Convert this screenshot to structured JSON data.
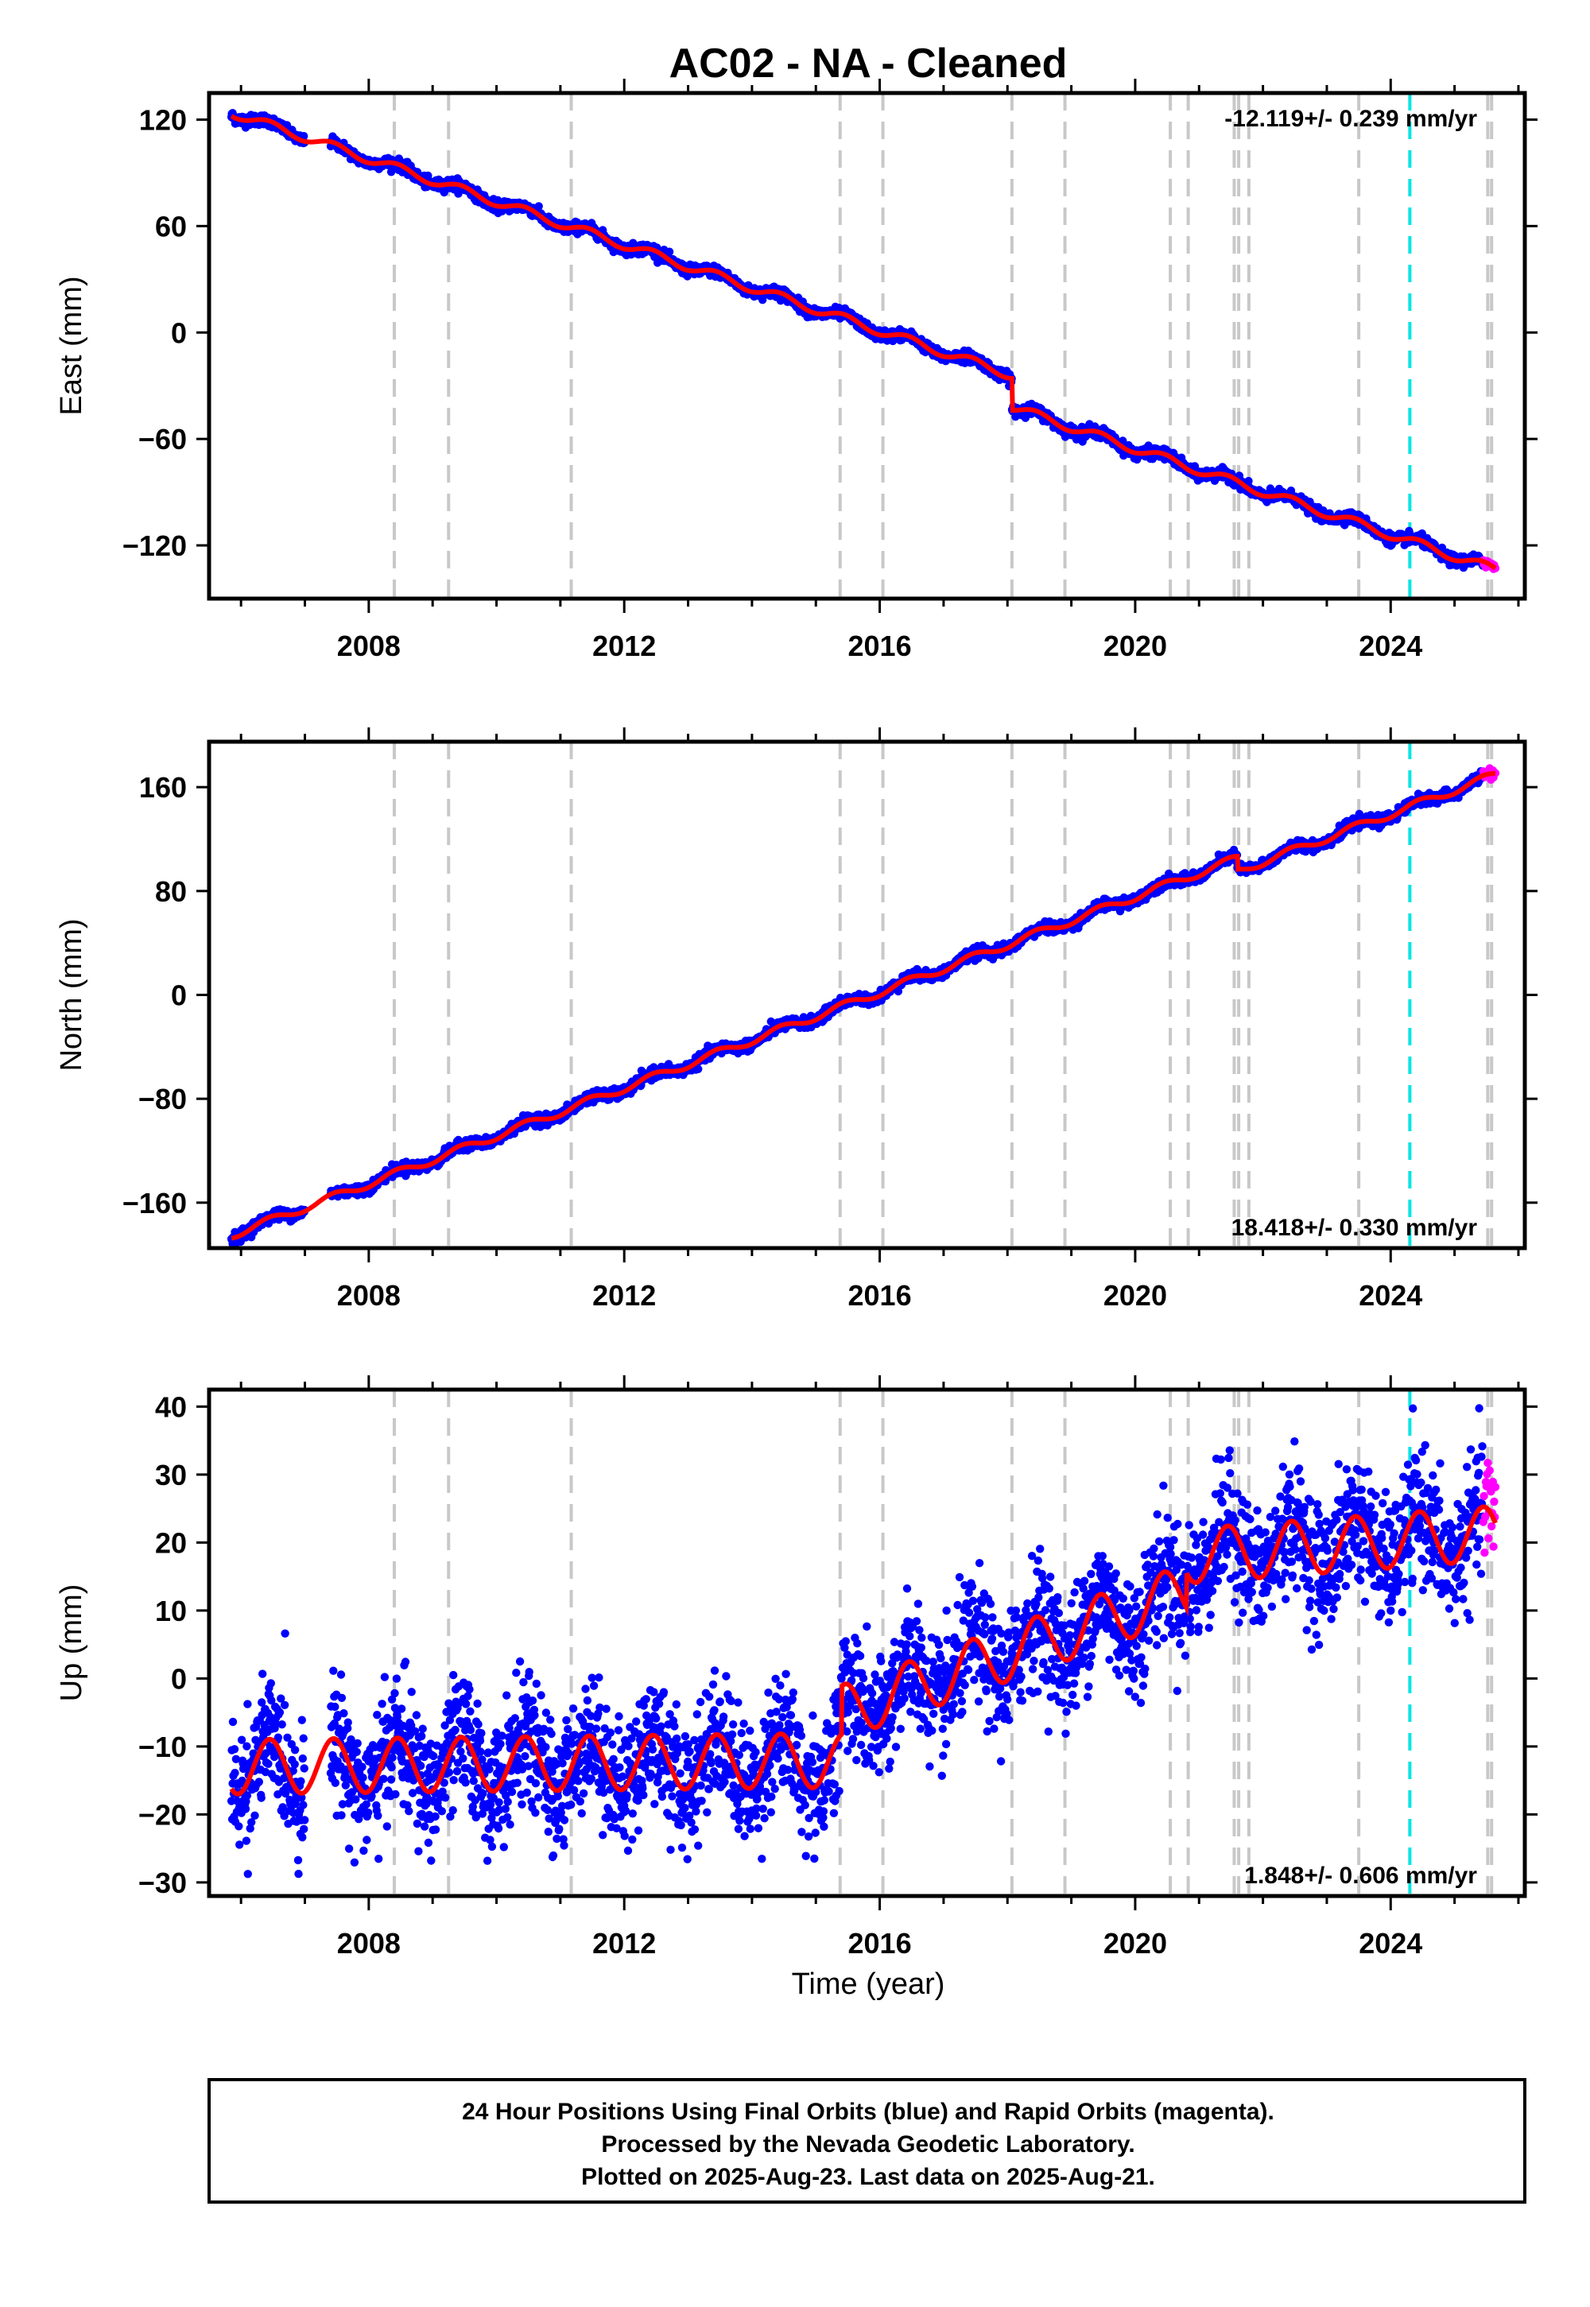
{
  "chart_data": [
    {
      "type": "scatter",
      "title": "AC02  - NA - Cleaned",
      "ylabel": "East (mm)",
      "xlabel": "",
      "xlim": [
        2005.5,
        2026.1
      ],
      "ylim": [
        -150,
        135
      ],
      "x_ticks": [
        2008,
        2012,
        2016,
        2020,
        2024
      ],
      "x_tick_labels": [
        "2008",
        "2012",
        "2016",
        "2020",
        "2024"
      ],
      "y_ticks": [
        -120,
        -60,
        0,
        60,
        120
      ],
      "y_tick_labels": [
        "−120",
        "−60",
        "0",
        "60",
        "120"
      ],
      "rate_label": "-12.119+/- 0.239 mm/yr",
      "rate_position": "top-right",
      "model": {
        "x0": 2005.85,
        "y0": 124,
        "rate_mm_per_yr": -12.119,
        "seasonal_amp": 2.5,
        "offsets": [
          {
            "t": 2018.07,
            "dy": -18
          }
        ]
      },
      "gap": [
        2007.0,
        2007.4
      ],
      "series": [
        {
          "name": "Final Orbits (blue)",
          "color": "#0000ff",
          "x_range": [
            2005.85,
            2025.45
          ],
          "scatter_sd": 1.5
        },
        {
          "name": "Rapid Orbits (magenta)",
          "color": "#ff00ff",
          "x_range": [
            2025.45,
            2025.64
          ],
          "scatter_sd": 1.5
        },
        {
          "name": "model",
          "color": "#ff0000",
          "type": "line"
        }
      ]
    },
    {
      "type": "scatter",
      "ylabel": "North (mm)",
      "xlabel": "",
      "xlim": [
        2005.5,
        2026.1
      ],
      "ylim": [
        -195,
        195
      ],
      "x_ticks": [
        2008,
        2012,
        2016,
        2020,
        2024
      ],
      "x_tick_labels": [
        "2008",
        "2012",
        "2016",
        "2020",
        "2024"
      ],
      "y_ticks": [
        -160,
        -80,
        0,
        80,
        160
      ],
      "y_tick_labels": [
        "−160",
        "−80",
        "0",
        "80",
        "160"
      ],
      "rate_label": "18.418+/- 0.330 mm/yr",
      "rate_position": "bottom-right",
      "model": {
        "x0": 2005.85,
        "y0": -185,
        "rate_mm_per_yr": 18.418,
        "seasonal_amp": 3,
        "offsets": [
          {
            "t": 2021.6,
            "dy": -10
          }
        ]
      },
      "gap": [
        2007.0,
        2007.4
      ],
      "series": [
        {
          "name": "Final Orbits (blue)",
          "color": "#0000ff",
          "x_range": [
            2005.85,
            2025.45
          ],
          "scatter_sd": 2
        },
        {
          "name": "Rapid Orbits (magenta)",
          "color": "#ff00ff",
          "x_range": [
            2025.45,
            2025.64
          ],
          "scatter_sd": 2
        },
        {
          "name": "model",
          "color": "#ff0000",
          "type": "line"
        }
      ]
    },
    {
      "type": "scatter",
      "ylabel": "Up (mm)",
      "xlabel": "Time (year)",
      "xlim": [
        2005.5,
        2026.1
      ],
      "ylim": [
        -32,
        42.5
      ],
      "x_ticks": [
        2008,
        2012,
        2016,
        2020,
        2024
      ],
      "x_tick_labels": [
        "2008",
        "2012",
        "2016",
        "2020",
        "2024"
      ],
      "y_ticks": [
        -30,
        -20,
        -10,
        0,
        10,
        20,
        30,
        40
      ],
      "y_tick_labels": [
        "−30",
        "−20",
        "−10",
        "0",
        "10",
        "20",
        "30",
        "40"
      ],
      "rate_label": "1.848+/- 0.606 mm/yr",
      "rate_position": "bottom-right",
      "model": {
        "segments": [
          {
            "from": 2005.85,
            "to": 2015.4,
            "y0": -13,
            "rate_mm_per_yr": 0.1
          },
          {
            "from": 2015.4,
            "to": 2020.8,
            "y0": -5,
            "rate_mm_per_yr": 3.3
          },
          {
            "from": 2020.8,
            "to": 2025.64,
            "y0": 18,
            "rate_mm_per_yr": 0.7
          }
        ],
        "seasonal_amp": 4
      },
      "gap": [
        2007.0,
        2007.4
      ],
      "series": [
        {
          "name": "Final Orbits (blue)",
          "color": "#0000ff",
          "x_range": [
            2005.85,
            2025.45
          ],
          "scatter_sd": 4.5
        },
        {
          "name": "Rapid Orbits (magenta)",
          "color": "#ff00ff",
          "x_range": [
            2025.45,
            2025.64
          ],
          "scatter_sd": 5
        },
        {
          "name": "model",
          "color": "#ff0000",
          "type": "line"
        }
      ]
    }
  ],
  "event_lines": {
    "gray": [
      2008.4,
      2009.25,
      2011.17,
      2015.38,
      2016.05,
      2018.07,
      2018.9,
      2020.55,
      2020.83,
      2021.55,
      2021.62,
      2021.78,
      2023.5,
      2025.52,
      2025.58
    ],
    "cyan": [
      2024.3
    ],
    "gray_color": "#c8c8c8",
    "cyan_color": "#00e5e5"
  },
  "caption": {
    "line1": "24 Hour Positions Using Final Orbits (blue) and Rapid Orbits (magenta).",
    "line2": "Processed by the Nevada Geodetic Laboratory.",
    "line3": "Plotted on 2025-Aug-23. Last data on 2025-Aug-21."
  }
}
